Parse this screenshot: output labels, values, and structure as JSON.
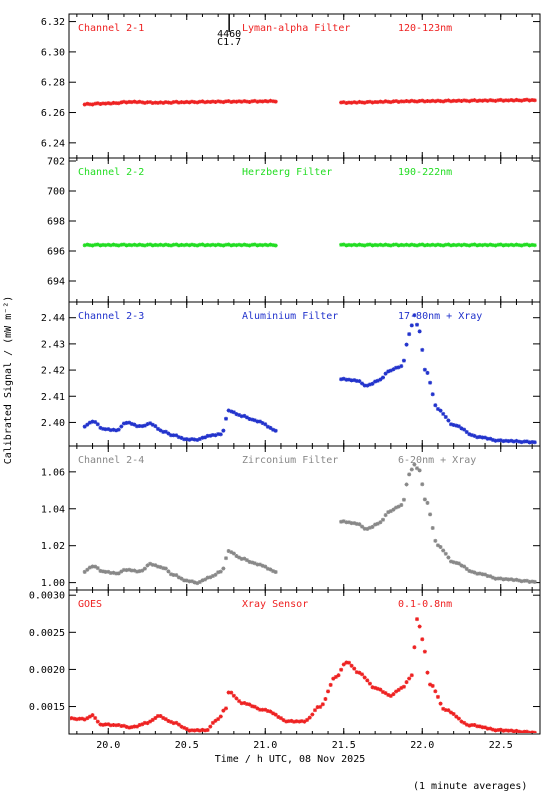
{
  "page": {
    "x_axis_label": "Time / h UTC, 08 Nov 2025",
    "y_axis_label": "Calibrated Signal / (mW m⁻²)",
    "footnote": "(1 minute averages)",
    "flare_marker": {
      "time": 20.77,
      "number": "4460",
      "class": "C1.7"
    }
  },
  "colors": {
    "red": "#ee2222",
    "green": "#22dd22",
    "blue": "#2233cc",
    "grey": "#888888",
    "axis": "#000000"
  },
  "chart_data": [
    {
      "type": "scatter",
      "channel": "Channel 2-1",
      "filter": "Lyman-alpha Filter",
      "band": "120-123nm",
      "color": "#ee2222",
      "xlim": [
        19.75,
        22.75
      ],
      "ylim": [
        6.23,
        6.325
      ],
      "yticks": [
        "6.24",
        "6.26",
        "6.28",
        "6.30",
        "6.32"
      ],
      "x": [
        19.85,
        20.0,
        20.15,
        20.3,
        20.45,
        20.6,
        20.75,
        20.9,
        21.07,
        21.5,
        21.65,
        21.8,
        21.95,
        22.1,
        22.3,
        22.5,
        22.72
      ],
      "values": [
        6.2655,
        6.266,
        6.267,
        6.2665,
        6.2668,
        6.267,
        6.2672,
        6.2673,
        6.2675,
        6.2665,
        6.2668,
        6.2672,
        6.2675,
        6.2676,
        6.2678,
        6.268,
        6.2682
      ]
    },
    {
      "type": "scatter",
      "channel": "Channel 2-2",
      "filter": "Herzberg Filter",
      "band": "190-222nm",
      "color": "#22dd22",
      "xlim": [
        19.75,
        22.75
      ],
      "ylim": [
        692.6,
        702.2
      ],
      "yticks": [
        "694",
        "696",
        "698",
        "700",
        "702"
      ],
      "x": [
        19.85,
        20.1,
        20.4,
        20.7,
        21.07,
        21.5,
        21.8,
        22.1,
        22.4,
        22.72
      ],
      "values": [
        696.4,
        696.4,
        696.4,
        696.4,
        696.4,
        696.4,
        696.4,
        696.4,
        696.4,
        696.4
      ]
    },
    {
      "type": "scatter",
      "channel": "Channel 2-3",
      "filter": "Aluminium Filter",
      "band": "17-80nm + Xray",
      "color": "#2233cc",
      "xlim": [
        19.75,
        22.75
      ],
      "ylim": [
        2.391,
        2.446
      ],
      "yticks": [
        "2.40",
        "2.41",
        "2.42",
        "2.43",
        "2.44"
      ],
      "x": [
        19.85,
        19.9,
        19.97,
        20.05,
        20.12,
        20.2,
        20.27,
        20.35,
        20.42,
        20.5,
        20.57,
        20.65,
        20.72,
        20.77,
        20.85,
        20.95,
        21.07,
        21.5,
        21.58,
        21.65,
        21.72,
        21.8,
        21.87,
        21.92,
        21.95,
        21.98,
        22.02,
        22.1,
        22.2,
        22.35,
        22.5,
        22.72
      ],
      "values": [
        2.3985,
        2.4005,
        2.3975,
        2.397,
        2.4,
        2.3985,
        2.3995,
        2.3965,
        2.395,
        2.3935,
        2.3935,
        2.395,
        2.3955,
        2.4045,
        2.4025,
        2.4005,
        2.397,
        2.4165,
        2.416,
        2.414,
        2.416,
        2.42,
        2.4215,
        2.434,
        2.441,
        2.435,
        2.42,
        2.405,
        2.399,
        2.3945,
        2.393,
        2.3925
      ]
    },
    {
      "type": "scatter",
      "channel": "Channel 2-4",
      "filter": "Zirconium Filter",
      "band": "6-20nm + Xray",
      "color": "#888888",
      "xlim": [
        19.75,
        22.75
      ],
      "ylim": [
        0.996,
        1.074
      ],
      "yticks": [
        "1.00",
        "1.02",
        "1.04",
        "1.06"
      ],
      "x": [
        19.85,
        19.9,
        19.97,
        20.05,
        20.12,
        20.2,
        20.27,
        20.35,
        20.42,
        20.5,
        20.57,
        20.65,
        20.72,
        20.77,
        20.85,
        20.95,
        21.07,
        21.5,
        21.58,
        21.65,
        21.72,
        21.8,
        21.87,
        21.92,
        21.95,
        21.98,
        22.02,
        22.1,
        22.2,
        22.35,
        22.5,
        22.72
      ],
      "values": [
        1.006,
        1.009,
        1.006,
        1.005,
        1.007,
        1.006,
        1.01,
        1.008,
        1.004,
        1.001,
        1.0,
        1.003,
        1.006,
        1.017,
        1.013,
        1.01,
        1.006,
        1.033,
        1.032,
        1.029,
        1.032,
        1.039,
        1.042,
        1.059,
        1.064,
        1.061,
        1.045,
        1.02,
        1.011,
        1.005,
        1.002,
        1.0005
      ]
    },
    {
      "type": "scatter",
      "channel": "GOES",
      "filter": "Xray Sensor",
      "band": "0.1-0.8nm",
      "color": "#ee2222",
      "xlim": [
        19.75,
        22.75
      ],
      "ylim": [
        0.00113,
        0.00307
      ],
      "yticks": [
        "0.0015",
        "0.0020",
        "0.0025",
        "0.0030"
      ],
      "x": [
        19.75,
        19.85,
        19.9,
        19.95,
        20.05,
        20.15,
        20.25,
        20.32,
        20.42,
        20.52,
        20.62,
        20.7,
        20.75,
        20.77,
        20.85,
        21.0,
        21.15,
        21.25,
        21.35,
        21.45,
        21.52,
        21.6,
        21.7,
        21.8,
        21.87,
        21.93,
        21.97,
        22.0,
        22.05,
        22.15,
        22.3,
        22.5,
        22.72
      ],
      "values": [
        0.00134,
        0.00133,
        0.00138,
        0.00126,
        0.00125,
        0.00122,
        0.00128,
        0.00137,
        0.00128,
        0.00118,
        0.00118,
        0.00133,
        0.00148,
        0.0017,
        0.00155,
        0.00145,
        0.0013,
        0.0013,
        0.0015,
        0.0019,
        0.0021,
        0.00195,
        0.00175,
        0.00165,
        0.00175,
        0.0019,
        0.0027,
        0.0024,
        0.0018,
        0.00145,
        0.00125,
        0.00118,
        0.00115
      ]
    }
  ],
  "x_axis": {
    "xlim": [
      19.75,
      22.75
    ],
    "ticks": [
      "20.0",
      "20.5",
      "21.0",
      "21.5",
      "22.0",
      "22.5"
    ],
    "gap": [
      21.08,
      21.48
    ]
  }
}
